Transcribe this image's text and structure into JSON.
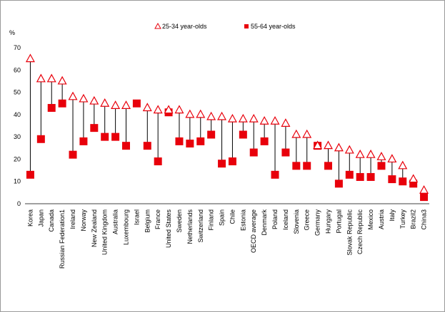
{
  "chart_data": {
    "type": "scatter",
    "ylabel": "%",
    "ylim": [
      0,
      70
    ],
    "yticks": [
      "0",
      "10",
      "20",
      "30",
      "40",
      "50",
      "60",
      "70"
    ],
    "grid": false,
    "legend_position": "top",
    "categories": [
      "Korea",
      "Japan",
      "Canada",
      "Russian Federation1",
      "Ireland",
      "Norway",
      "New Zealand",
      "United Kingdom",
      "Australia",
      "Luxembourg",
      "Israel",
      "Belgium",
      "France",
      "United States",
      "Sweden",
      "Netherlands",
      "Switzerland",
      "Finland",
      "Spain",
      "Chile",
      "Estonia",
      "OECD average",
      "Denmark",
      "Poland",
      "Iceland",
      "Slovenia",
      "Greece",
      "Germany",
      "Hungary",
      "Portugal",
      "Slovak Republic",
      "Czech Republic",
      "Mexico",
      "Austria",
      "Italy",
      "Turkey",
      "Brazil2",
      "China3"
    ],
    "series": [
      {
        "name": "25-34 year-olds",
        "color": "#e8000b",
        "marker": "triangle-open",
        "values": [
          65,
          56,
          56,
          55,
          48,
          47,
          46,
          45,
          44,
          44,
          null,
          43,
          42,
          42,
          42,
          40,
          40,
          39,
          39,
          38,
          38,
          38,
          37,
          37,
          36,
          31,
          31,
          26,
          26,
          25,
          24,
          22,
          22,
          21,
          20,
          17,
          11,
          6
        ]
      },
      {
        "name": "55-64 year-olds",
        "color": "#e8000b",
        "marker": "square-filled",
        "values": [
          13,
          29,
          43,
          45,
          22,
          28,
          34,
          30,
          30,
          26,
          45,
          26,
          19,
          41,
          28,
          27,
          28,
          31,
          18,
          19,
          31,
          23,
          28,
          13,
          23,
          17,
          17,
          26,
          17,
          9,
          13,
          12,
          12,
          17,
          11,
          10,
          9,
          3
        ]
      }
    ]
  }
}
